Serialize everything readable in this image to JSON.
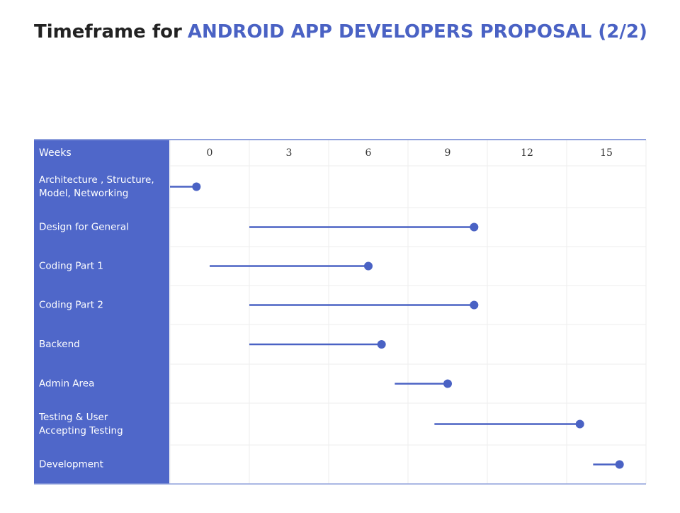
{
  "chart_data": {
    "type": "timeline",
    "title_prefix": "Timeframe for",
    "title_highlight": "ANDROID APP DEVELOPERS PROPOSAL (2/2)",
    "axis_label": "Weeks",
    "xlim": [
      -1.5,
      16.5
    ],
    "xticks": [
      0,
      3,
      6,
      9,
      12,
      15
    ],
    "color": "#4a62c4",
    "tasks": [
      [
        "Architecture , Structure,",
        "Model, Networking"
      ],
      [
        "Design for General"
      ],
      [
        "Coding Part 1"
      ],
      [
        "Coding Part 2"
      ],
      [
        "Backend"
      ],
      [
        "Admin Area"
      ],
      [
        "Testing & User",
        "Accepting Testing"
      ],
      [
        "Development"
      ]
    ],
    "start": [
      -1.5,
      1.5,
      0,
      1.5,
      1.5,
      7,
      8.5,
      14.5
    ],
    "end": [
      -0.5,
      10,
      6,
      10,
      6.5,
      9,
      14,
      15.5
    ]
  }
}
